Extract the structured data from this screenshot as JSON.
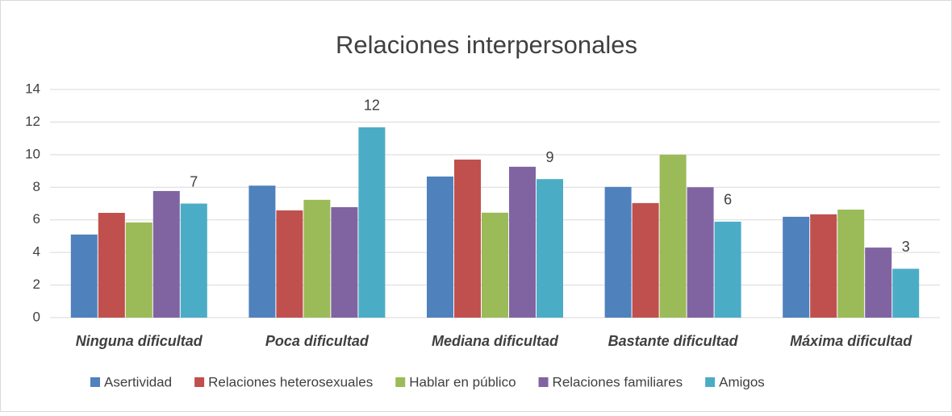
{
  "chart_data": {
    "type": "bar",
    "title": "Relaciones interpersonales",
    "categories": [
      "Ninguna dificultad",
      "Poca dificultad",
      "Mediana dificultad",
      "Bastante dificultad",
      "Máxima dificultad"
    ],
    "series": [
      {
        "name": "Asertividad",
        "color": "#4f81bd",
        "values": [
          5.1,
          8.1,
          8.66,
          8.02,
          6.19
        ]
      },
      {
        "name": "Relaciones heterosexuales",
        "color": "#c0504d",
        "values": [
          6.43,
          6.58,
          9.7,
          7.03,
          6.34
        ]
      },
      {
        "name": "Hablar en público",
        "color": "#9bbb59",
        "values": [
          5.84,
          7.23,
          6.44,
          10.0,
          6.63
        ]
      },
      {
        "name": "Relaciones familiares",
        "color": "#8064a2",
        "values": [
          7.77,
          6.78,
          9.26,
          8.0,
          4.3
        ]
      },
      {
        "name": "Amigos",
        "color": "#4bacc6",
        "values": [
          7.0,
          11.68,
          8.5,
          5.89,
          3.0
        ],
        "value_labels": [
          "7",
          "12",
          "9",
          "6",
          "3"
        ]
      }
    ],
    "ylim": [
      0,
      14
    ],
    "yticks": [
      0,
      2,
      4,
      6,
      8,
      10,
      12,
      14
    ],
    "grid": true,
    "legend": "bottom"
  }
}
